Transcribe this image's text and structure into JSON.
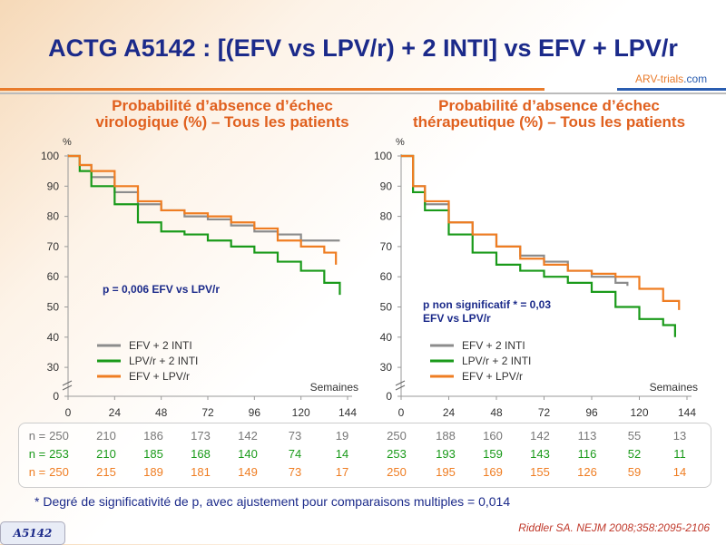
{
  "title": "ACTG A5142 : [(EFV vs LPV/r) + 2 INTI] vs EFV + LPV/r",
  "logo": {
    "part1": "ARV-trials",
    "part2": ".com"
  },
  "colors": {
    "gray": "#8c8c8c",
    "green": "#1a9a1a",
    "orange": "#ef7d22"
  },
  "chart_data": [
    {
      "type": "line",
      "title": "Probabilité d’absence d’échec virologique (%) – Tous les patients",
      "ylabel": "%",
      "xlabel": "Semaines",
      "ylim": [
        0,
        100
      ],
      "xlim": [
        0,
        144
      ],
      "xticks": [
        "0",
        "24",
        "48",
        "72",
        "96",
        "120",
        "144"
      ],
      "yticks": [
        "0",
        "30",
        "40",
        "50",
        "60",
        "70",
        "80",
        "90",
        "100"
      ],
      "annotation": "p = 0,006 EFV vs LPV/r",
      "series": [
        {
          "name": "EFV + 2 INTI",
          "color": "gray",
          "points": [
            [
              0,
              100
            ],
            [
              6,
              97
            ],
            [
              12,
              93
            ],
            [
              24,
              88
            ],
            [
              36,
              84
            ],
            [
              48,
              82
            ],
            [
              60,
              80
            ],
            [
              72,
              79
            ],
            [
              84,
              77
            ],
            [
              96,
              75
            ],
            [
              108,
              74
            ],
            [
              120,
              72
            ],
            [
              132,
              72
            ],
            [
              140,
              72
            ]
          ]
        },
        {
          "name": "LPV/r + 2 INTI",
          "color": "green",
          "points": [
            [
              0,
              100
            ],
            [
              6,
              95
            ],
            [
              12,
              90
            ],
            [
              24,
              84
            ],
            [
              36,
              78
            ],
            [
              48,
              75
            ],
            [
              60,
              74
            ],
            [
              72,
              72
            ],
            [
              84,
              70
            ],
            [
              96,
              68
            ],
            [
              108,
              65
            ],
            [
              120,
              62
            ],
            [
              132,
              58
            ],
            [
              140,
              54
            ]
          ]
        },
        {
          "name": "EFV + LPV/r",
          "color": "orange",
          "points": [
            [
              0,
              100
            ],
            [
              6,
              97
            ],
            [
              12,
              95
            ],
            [
              24,
              90
            ],
            [
              36,
              85
            ],
            [
              48,
              82
            ],
            [
              60,
              81
            ],
            [
              72,
              80
            ],
            [
              84,
              78
            ],
            [
              96,
              76
            ],
            [
              108,
              72
            ],
            [
              120,
              70
            ],
            [
              132,
              68
            ],
            [
              138,
              64
            ]
          ]
        }
      ],
      "n_at_risk": [
        [
          "250",
          "210",
          "186",
          "173",
          "142",
          "73",
          "19"
        ],
        [
          "253",
          "210",
          "185",
          "168",
          "140",
          "74",
          "14"
        ],
        [
          "250",
          "215",
          "189",
          "181",
          "149",
          "73",
          "17"
        ]
      ]
    },
    {
      "type": "line",
      "title": "Probabilité d’absence d’échec thérapeutique (%) – Tous les  patients",
      "ylabel": "%",
      "xlabel": "Semaines",
      "ylim": [
        0,
        100
      ],
      "xlim": [
        0,
        144
      ],
      "xticks": [
        "0",
        "24",
        "48",
        "72",
        "96",
        "120",
        "144"
      ],
      "yticks": [
        "0",
        "30",
        "40",
        "50",
        "60",
        "70",
        "80",
        "90",
        "100"
      ],
      "annotation": "p non significatif * = 0,03 EFV vs LPV/r",
      "series": [
        {
          "name": "EFV + 2 INTI",
          "color": "gray",
          "points": [
            [
              0,
              100
            ],
            [
              6,
              90
            ],
            [
              12,
              84
            ],
            [
              24,
              78
            ],
            [
              36,
              74
            ],
            [
              48,
              70
            ],
            [
              60,
              67
            ],
            [
              72,
              65
            ],
            [
              84,
              62
            ],
            [
              96,
              60
            ],
            [
              108,
              58
            ],
            [
              114,
              57
            ]
          ]
        },
        {
          "name": "LPV/r + 2 INTI",
          "color": "green",
          "points": [
            [
              0,
              100
            ],
            [
              6,
              88
            ],
            [
              12,
              82
            ],
            [
              24,
              74
            ],
            [
              36,
              68
            ],
            [
              48,
              64
            ],
            [
              60,
              62
            ],
            [
              72,
              60
            ],
            [
              84,
              58
            ],
            [
              96,
              55
            ],
            [
              108,
              50
            ],
            [
              120,
              46
            ],
            [
              132,
              44
            ],
            [
              138,
              40
            ]
          ]
        },
        {
          "name": "EFV + LPV/r",
          "color": "orange",
          "points": [
            [
              0,
              100
            ],
            [
              6,
              90
            ],
            [
              12,
              85
            ],
            [
              24,
              78
            ],
            [
              36,
              74
            ],
            [
              48,
              70
            ],
            [
              60,
              66
            ],
            [
              72,
              64
            ],
            [
              84,
              62
            ],
            [
              96,
              61
            ],
            [
              108,
              60
            ],
            [
              120,
              56
            ],
            [
              132,
              52
            ],
            [
              140,
              49
            ]
          ]
        }
      ],
      "n_at_risk": [
        [
          "250",
          "188",
          "160",
          "142",
          "113",
          "55",
          "13"
        ],
        [
          "253",
          "193",
          "159",
          "143",
          "116",
          "52",
          "11"
        ],
        [
          "250",
          "195",
          "169",
          "155",
          "126",
          "59",
          "14"
        ]
      ]
    }
  ],
  "n_label": "n =",
  "footnote": "* Degré de significativité de p, avec ajustement pour comparaisons multiples = 0,014",
  "reference": "Riddler SA. NEJM 2008;358:2095-2106",
  "tag": "A5142"
}
